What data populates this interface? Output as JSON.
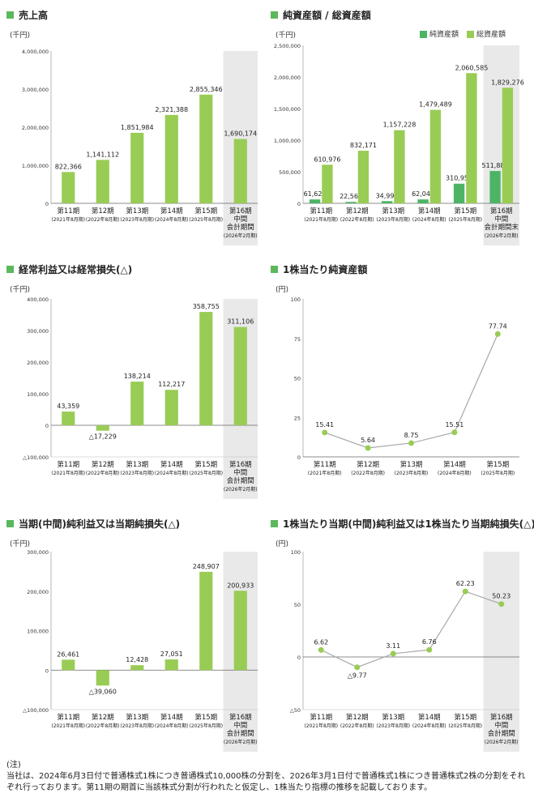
{
  "notes": {
    "label": "(注)",
    "text": "当社は、2024年6月3日付で普通株式1株につき普通株式10,000株の分割を、2026年3月1日付で普通株式1株につき普通株式2株の分割をそれぞれ行っております。第11期の期首に当該株式分割が行われたと仮定し、1株当たり指標の推移を記載しております。"
  },
  "colors": {
    "accent": "#5cb85c",
    "light": "#99cc55",
    "dark": "#4db466",
    "shade": "#e9e9e9",
    "line": "#a8a8a8"
  },
  "chart_data": [
    {
      "id": "sales",
      "type": "bar",
      "title": "売上高",
      "unit": "(千円)",
      "categories": [
        "第11期|(2021年8月期)",
        "第12期|(2022年8月期)",
        "第13期|(2023年8月期)",
        "第14期|(2024年8月期)",
        "第15期|(2025年8月期)",
        "第16期|中間|会計期間|(2026年2月期)"
      ],
      "ylim": [
        0,
        4000000
      ],
      "yticks": [
        {
          "v": 0,
          "t": "0"
        },
        {
          "v": 1000000,
          "t": "1,000,000"
        },
        {
          "v": 2000000,
          "t": "2,000,000"
        },
        {
          "v": 3000000,
          "t": "3,000,000"
        },
        {
          "v": 4000000,
          "t": "4,000,000"
        }
      ],
      "series": [
        {
          "values": [
            822366,
            1141112,
            1851984,
            2321388,
            2855346,
            1690174
          ],
          "labels": [
            "822,366",
            "1,141,112",
            "1,851,984",
            "2,321,388",
            "2,855,346",
            "1,690,174"
          ]
        }
      ],
      "shade_last": true
    },
    {
      "id": "assets",
      "type": "bar",
      "title": "純資産額 / 総資産額",
      "unit": "(千円)",
      "legend": [
        "純資産額",
        "総資産額"
      ],
      "categories": [
        "第11期|(2021年8月期)",
        "第12期|(2022年8月期)",
        "第13期|(2023年8月期)",
        "第14期|(2024年8月期)",
        "第15期|(2025年8月期)",
        "第16期|中間|会計期間末|(2026年2月期)"
      ],
      "ylim": [
        0,
        2500000
      ],
      "yticks": [
        {
          "v": 0,
          "t": "0"
        },
        {
          "v": 500000,
          "t": "500,000"
        },
        {
          "v": 1000000,
          "t": "1,000,000"
        },
        {
          "v": 1500000,
          "t": "1,500,000"
        },
        {
          "v": 2000000,
          "t": "2,000,000"
        },
        {
          "v": 2500000,
          "t": "2,500,000"
        }
      ],
      "series": [
        {
          "name": "純資産額",
          "values": [
            61629,
            22568,
            34996,
            62048,
            310956,
            511889
          ],
          "labels": [
            "61,629",
            "22,568",
            "34,996",
            "62,048",
            "310,956",
            "511,889"
          ]
        },
        {
          "name": "総資産額",
          "values": [
            610976,
            832171,
            1157228,
            1479489,
            2060585,
            1829276
          ],
          "labels": [
            "610,976",
            "832,171",
            "1,157,228",
            "1,479,489",
            "2,060,585",
            "1,829,276"
          ]
        }
      ],
      "shade_last": true
    },
    {
      "id": "ordinary",
      "type": "bar",
      "title": "経常利益又は経常損失(△)",
      "unit": "(千円)",
      "categories": [
        "第11期|(2021年8月期)",
        "第12期|(2022年8月期)",
        "第13期|(2023年8月期)",
        "第14期|(2024年8月期)",
        "第15期|(2025年8月期)",
        "第16期|中間|会計期間|(2026年2月期)"
      ],
      "ylim": [
        -100000,
        400000
      ],
      "yticks": [
        {
          "v": -100000,
          "t": "△100,000"
        },
        {
          "v": 0,
          "t": "0"
        },
        {
          "v": 100000,
          "t": "100,000"
        },
        {
          "v": 200000,
          "t": "200,000"
        },
        {
          "v": 300000,
          "t": "300,000"
        },
        {
          "v": 400000,
          "t": "400,000"
        }
      ],
      "series": [
        {
          "values": [
            43359,
            -17229,
            138214,
            112217,
            358755,
            311106
          ],
          "labels": [
            "43,359",
            "△17,229",
            "138,214",
            "112,217",
            "358,755",
            "311,106"
          ]
        }
      ],
      "shade_last": true
    },
    {
      "id": "bps",
      "type": "line",
      "title": "1株当たり純資産額",
      "unit": "(円)",
      "categories": [
        "第11期|(2021年8月期)",
        "第12期|(2022年8月期)",
        "第13期|(2023年8月期)",
        "第14期|(2024年8月期)",
        "第15期|(2025年8月期)"
      ],
      "ylim": [
        0,
        100
      ],
      "yticks": [
        {
          "v": 0,
          "t": "0"
        },
        {
          "v": 25,
          "t": "25"
        },
        {
          "v": 50,
          "t": "50"
        },
        {
          "v": 75,
          "t": "75"
        },
        {
          "v": 100,
          "t": "100"
        }
      ],
      "series": [
        {
          "values": [
            15.41,
            5.64,
            8.75,
            15.51,
            77.74
          ],
          "labels": [
            "15.41",
            "5.64",
            "8.75",
            "15.51",
            "77.74"
          ]
        }
      ],
      "shade_last": false
    },
    {
      "id": "netincome",
      "type": "bar",
      "title": "当期(中間)純利益又は当期純損失(△)",
      "unit": "(千円)",
      "categories": [
        "第11期|(2021年8月期)",
        "第12期|(2022年8月期)",
        "第13期|(2023年8月期)",
        "第14期|(2024年8月期)",
        "第15期|(2025年8月期)",
        "第16期|中間|会計期間|(2026年2月期)"
      ],
      "ylim": [
        -100000,
        300000
      ],
      "yticks": [
        {
          "v": -100000,
          "t": "△100,000"
        },
        {
          "v": 0,
          "t": "0"
        },
        {
          "v": 100000,
          "t": "100,000"
        },
        {
          "v": 200000,
          "t": "200,000"
        },
        {
          "v": 300000,
          "t": "300,000"
        }
      ],
      "series": [
        {
          "values": [
            26461,
            -39060,
            12428,
            27051,
            248907,
            200933
          ],
          "labels": [
            "26,461",
            "△39,060",
            "12,428",
            "27,051",
            "248,907",
            "200,933"
          ]
        }
      ],
      "shade_last": true
    },
    {
      "id": "eps",
      "type": "line",
      "title": "1株当たり当期(中間)純利益又は1株当たり当期純損失(△)",
      "unit": "(円)",
      "categories": [
        "第11期|(2021年8月期)",
        "第12期|(2022年8月期)",
        "第13期|(2023年8月期)",
        "第14期|(2024年8月期)",
        "第15期|(2025年8月期)",
        "第16期|中間|会計期間|(2026年2月期)"
      ],
      "ylim": [
        -50,
        100
      ],
      "yticks": [
        {
          "v": -50,
          "t": "△50"
        },
        {
          "v": 0,
          "t": "0"
        },
        {
          "v": 50,
          "t": "50"
        },
        {
          "v": 100,
          "t": "100"
        }
      ],
      "series": [
        {
          "values": [
            6.62,
            -9.77,
            3.11,
            6.76,
            62.23,
            50.23
          ],
          "labels": [
            "6.62",
            "△9.77",
            "3.11",
            "6.76",
            "62.23",
            "50.23"
          ]
        }
      ],
      "shade_last": true
    }
  ]
}
